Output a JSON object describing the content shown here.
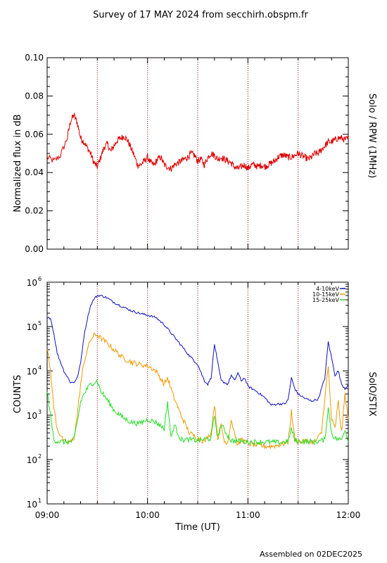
{
  "title": "Survey of 17 MAY 2024 from secchirh.obspm.fr",
  "footer": "Assembled on 02DEC2025",
  "chart_data": [
    {
      "type": "line",
      "ylabel": "Normalized flux in dB",
      "right_label": "Solo / RPW (1MHz)",
      "ylim": [
        0.0,
        0.1
      ],
      "yticks": [
        "0.00",
        "0.02",
        "0.04",
        "0.06",
        "0.08",
        "0.10"
      ],
      "xlim": [
        "09:00",
        "12:00"
      ],
      "series": [
        {
          "color": "#dd0000",
          "x": [
            "09:00",
            "09:04",
            "09:08",
            "09:12",
            "09:14",
            "09:16",
            "09:18",
            "09:20",
            "09:22",
            "09:24",
            "09:26",
            "09:28",
            "09:30",
            "09:32",
            "09:34",
            "09:36",
            "09:38",
            "09:40",
            "09:42",
            "09:44",
            "09:46",
            "09:48",
            "09:50",
            "09:52",
            "09:54",
            "09:56",
            "09:58",
            "10:00",
            "10:02",
            "10:04",
            "10:06",
            "10:08",
            "10:10",
            "10:12",
            "10:14",
            "10:16",
            "10:18",
            "10:20",
            "10:22",
            "10:24",
            "10:26",
            "10:28",
            "10:30",
            "10:32",
            "10:34",
            "10:36",
            "10:38",
            "10:40",
            "10:42",
            "10:44",
            "10:46",
            "10:48",
            "10:50",
            "10:52",
            "10:54",
            "10:56",
            "10:58",
            "11:00",
            "11:02",
            "11:04",
            "11:06",
            "11:08",
            "11:10",
            "11:12",
            "11:14",
            "11:16",
            "11:18",
            "11:20",
            "11:22",
            "11:24",
            "11:26",
            "11:28",
            "11:30",
            "11:32",
            "11:34",
            "11:36",
            "11:38",
            "11:40",
            "11:42",
            "11:44",
            "11:46",
            "11:48",
            "11:50",
            "11:52",
            "11:54",
            "11:56",
            "11:58",
            "12:00"
          ],
          "y": [
            0.048,
            0.046,
            0.049,
            0.058,
            0.067,
            0.07,
            0.066,
            0.058,
            0.056,
            0.053,
            0.05,
            0.045,
            0.043,
            0.048,
            0.053,
            0.055,
            0.051,
            0.054,
            0.057,
            0.058,
            0.059,
            0.057,
            0.053,
            0.049,
            0.044,
            0.044,
            0.046,
            0.048,
            0.045,
            0.044,
            0.047,
            0.048,
            0.044,
            0.043,
            0.042,
            0.044,
            0.045,
            0.046,
            0.047,
            0.048,
            0.05,
            0.049,
            0.046,
            0.047,
            0.044,
            0.048,
            0.05,
            0.049,
            0.047,
            0.048,
            0.047,
            0.046,
            0.045,
            0.043,
            0.042,
            0.043,
            0.044,
            0.042,
            0.044,
            0.044,
            0.043,
            0.044,
            0.043,
            0.044,
            0.045,
            0.046,
            0.048,
            0.049,
            0.049,
            0.048,
            0.048,
            0.049,
            0.05,
            0.049,
            0.048,
            0.047,
            0.048,
            0.05,
            0.05,
            0.052,
            0.054,
            0.056,
            0.056,
            0.057,
            0.058,
            0.058,
            0.057,
            0.058
          ]
        }
      ]
    },
    {
      "type": "line",
      "log_y": true,
      "ylabel": "COUNTS",
      "right_label": "SolO/STIX",
      "ylim": [
        10,
        1000000
      ],
      "yticks": [
        {
          "base": "10",
          "exp": "1"
        },
        {
          "base": "10",
          "exp": "2"
        },
        {
          "base": "10",
          "exp": "3"
        },
        {
          "base": "10",
          "exp": "4"
        },
        {
          "base": "10",
          "exp": "5"
        },
        {
          "base": "10",
          "exp": "6"
        }
      ],
      "xlabel": "Time (UT)",
      "xticks": [
        "09:00",
        "10:00",
        "11:00",
        "12:00"
      ],
      "xlim": [
        "09:00",
        "12:00"
      ],
      "legend_position": "top-right",
      "series": [
        {
          "name": "4-10keV",
          "color": "#1010c0",
          "x": [
            "09:00",
            "09:02",
            "09:04",
            "09:06",
            "09:10",
            "09:14",
            "09:16",
            "09:18",
            "09:20",
            "09:22",
            "09:24",
            "09:26",
            "09:28",
            "09:30",
            "09:32",
            "09:35",
            "09:40",
            "09:45",
            "09:50",
            "09:55",
            "10:00",
            "10:05",
            "10:10",
            "10:15",
            "10:20",
            "10:25",
            "10:30",
            "10:34",
            "10:36",
            "10:38",
            "10:40",
            "10:42",
            "10:44",
            "10:48",
            "10:50",
            "10:52",
            "10:54",
            "10:56",
            "10:58",
            "11:00",
            "11:05",
            "11:10",
            "11:14",
            "11:18",
            "11:22",
            "11:24",
            "11:26",
            "11:28",
            "11:30",
            "11:34",
            "11:38",
            "11:42",
            "11:46",
            "11:48",
            "11:50",
            "11:52",
            "11:54",
            "11:56",
            "11:58",
            "12:00"
          ],
          "y": [
            150000,
            160000,
            70000,
            25000,
            10000,
            5500,
            5500,
            7000,
            15000,
            60000,
            150000,
            300000,
            420000,
            500000,
            500000,
            460000,
            350000,
            280000,
            230000,
            200000,
            180000,
            160000,
            110000,
            65000,
            38000,
            22000,
            14000,
            6000,
            5000,
            7000,
            40000,
            15000,
            6000,
            5000,
            8000,
            6000,
            9000,
            6000,
            7000,
            4500,
            3500,
            2500,
            1700,
            1800,
            1800,
            2200,
            7000,
            4000,
            3000,
            2400,
            2100,
            2300,
            7000,
            45000,
            20000,
            8000,
            10000,
            5000,
            4000,
            5000
          ]
        },
        {
          "name": "10-15keV",
          "color": "#ee9900",
          "x": [
            "09:00",
            "09:02",
            "09:04",
            "09:06",
            "09:10",
            "09:14",
            "09:16",
            "09:18",
            "09:20",
            "09:22",
            "09:24",
            "09:26",
            "09:28",
            "09:30",
            "09:32",
            "09:35",
            "09:40",
            "09:45",
            "09:50",
            "09:55",
            "10:00",
            "10:05",
            "10:10",
            "10:12",
            "10:15",
            "10:20",
            "10:25",
            "10:30",
            "10:34",
            "10:38",
            "10:40",
            "10:42",
            "10:44",
            "10:46",
            "10:48",
            "10:50",
            "10:54",
            "10:56",
            "10:58",
            "11:00",
            "11:05",
            "11:10",
            "11:15",
            "11:20",
            "11:24",
            "11:26",
            "11:28",
            "11:30",
            "11:34",
            "11:40",
            "11:44",
            "11:46",
            "11:48",
            "11:50",
            "11:52",
            "11:54",
            "11:56",
            "11:58",
            "12:00"
          ],
          "y": [
            30000,
            10000,
            1500,
            500,
            250,
            250,
            300,
            1000,
            5000,
            15000,
            30000,
            50000,
            63000,
            65000,
            55000,
            45000,
            30000,
            20000,
            16000,
            14000,
            13000,
            10000,
            5000,
            7000,
            3000,
            1000,
            400,
            300,
            260,
            400,
            1800,
            300,
            600,
            250,
            250,
            800,
            200,
            300,
            250,
            230,
            210,
            200,
            200,
            220,
            250,
            1200,
            300,
            250,
            260,
            250,
            400,
            2500,
            12000,
            800,
            500,
            2000,
            400,
            3000,
            800
          ]
        },
        {
          "name": "15-25keV",
          "color": "#22dd22",
          "x": [
            "09:00",
            "09:02",
            "09:04",
            "09:06",
            "09:10",
            "09:14",
            "09:16",
            "09:18",
            "09:20",
            "09:22",
            "09:24",
            "09:26",
            "09:28",
            "09:30",
            "09:32",
            "09:35",
            "09:40",
            "09:45",
            "09:50",
            "09:55",
            "10:00",
            "10:05",
            "10:10",
            "10:12",
            "10:14",
            "10:16",
            "10:20",
            "10:25",
            "10:30",
            "10:38",
            "10:40",
            "10:42",
            "10:44",
            "10:50",
            "10:55",
            "11:00",
            "11:10",
            "11:20",
            "11:24",
            "11:26",
            "11:28",
            "11:30",
            "11:40",
            "11:46",
            "11:48",
            "11:50",
            "11:52",
            "11:56",
            "11:58",
            "12:00"
          ],
          "y": [
            3500,
            1000,
            280,
            260,
            250,
            250,
            280,
            700,
            2000,
            3000,
            4000,
            5000,
            5500,
            6000,
            3500,
            2500,
            1300,
            900,
            700,
            650,
            800,
            700,
            500,
            2000,
            300,
            600,
            280,
            280,
            270,
            300,
            1000,
            300,
            600,
            270,
            260,
            250,
            250,
            240,
            260,
            500,
            270,
            260,
            250,
            280,
            1500,
            400,
            300,
            280,
            500,
            250
          ]
        }
      ]
    }
  ]
}
